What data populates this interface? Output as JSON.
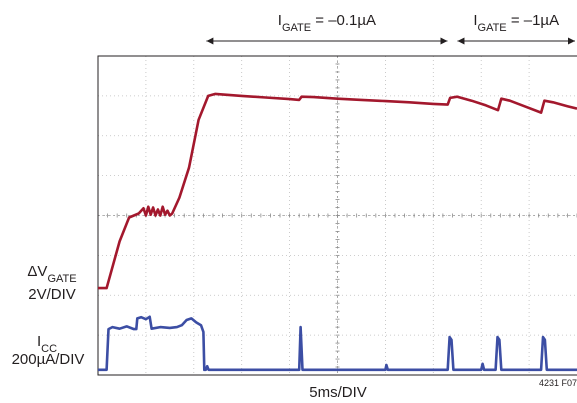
{
  "chart_data": {
    "type": "line",
    "title": "",
    "xlabel": "5ms/DIV",
    "figure_id": "4231 F07",
    "divisions": {
      "x": 10,
      "y": 8
    },
    "xlim": [
      0,
      10
    ],
    "ylim": [
      0,
      8
    ],
    "annotations": [
      {
        "sub_label": {
          "main": "I",
          "sub": "GATE",
          "rest": " = –0.1µA"
        },
        "x_span": [
          2.2,
          7.4
        ]
      },
      {
        "sub_label": {
          "main": "I",
          "sub": "GATE",
          "rest": " = –1µA"
        },
        "x_span": [
          7.4,
          10.0
        ]
      }
    ],
    "series": [
      {
        "channel": {
          "main": "ΔV",
          "sub": "GATE",
          "scale": "2V/DIV"
        },
        "color": "#a3182d",
        "points": [
          [
            0.0,
            2.18
          ],
          [
            0.18,
            2.18
          ],
          [
            0.22,
            2.35
          ],
          [
            0.45,
            3.35
          ],
          [
            0.65,
            3.95
          ],
          [
            0.85,
            4.05
          ],
          [
            0.95,
            4.18
          ],
          [
            1.0,
            4.0
          ],
          [
            1.05,
            4.22
          ],
          [
            1.1,
            4.02
          ],
          [
            1.15,
            4.2
          ],
          [
            1.2,
            4.0
          ],
          [
            1.25,
            4.15
          ],
          [
            1.3,
            4.0
          ],
          [
            1.35,
            4.22
          ],
          [
            1.4,
            4.02
          ],
          [
            1.45,
            4.12
          ],
          [
            1.5,
            4.0
          ],
          [
            1.55,
            4.05
          ],
          [
            1.7,
            4.45
          ],
          [
            1.9,
            5.2
          ],
          [
            2.1,
            6.4
          ],
          [
            2.3,
            7.0
          ],
          [
            2.45,
            7.05
          ],
          [
            3.0,
            7.0
          ],
          [
            3.5,
            6.96
          ],
          [
            4.0,
            6.92
          ],
          [
            4.2,
            6.9
          ],
          [
            4.25,
            6.98
          ],
          [
            4.5,
            6.97
          ],
          [
            5.0,
            6.93
          ],
          [
            5.5,
            6.9
          ],
          [
            6.0,
            6.87
          ],
          [
            6.5,
            6.84
          ],
          [
            7.0,
            6.8
          ],
          [
            7.3,
            6.78
          ],
          [
            7.35,
            6.95
          ],
          [
            7.5,
            6.98
          ],
          [
            7.8,
            6.88
          ],
          [
            8.1,
            6.76
          ],
          [
            8.35,
            6.64
          ],
          [
            8.42,
            6.93
          ],
          [
            8.6,
            6.88
          ],
          [
            8.9,
            6.74
          ],
          [
            9.25,
            6.58
          ],
          [
            9.32,
            6.88
          ],
          [
            9.5,
            6.84
          ],
          [
            9.8,
            6.74
          ],
          [
            10.0,
            6.68
          ]
        ]
      },
      {
        "channel": {
          "main": "I",
          "sub": "CC",
          "scale": "200µA/DIV"
        },
        "color": "#3c4ea4",
        "points": [
          [
            0.0,
            0.13
          ],
          [
            0.18,
            0.13
          ],
          [
            0.22,
            1.15
          ],
          [
            0.3,
            1.2
          ],
          [
            0.45,
            1.16
          ],
          [
            0.6,
            1.22
          ],
          [
            0.75,
            1.15
          ],
          [
            0.8,
            1.15
          ],
          [
            0.82,
            1.42
          ],
          [
            0.9,
            1.45
          ],
          [
            1.0,
            1.4
          ],
          [
            1.08,
            1.46
          ],
          [
            1.12,
            1.16
          ],
          [
            1.3,
            1.2
          ],
          [
            1.5,
            1.18
          ],
          [
            1.65,
            1.2
          ],
          [
            1.75,
            1.25
          ],
          [
            1.85,
            1.38
          ],
          [
            1.95,
            1.42
          ],
          [
            2.05,
            1.32
          ],
          [
            2.15,
            1.25
          ],
          [
            2.2,
            1.08
          ],
          [
            2.22,
            0.13
          ],
          [
            2.25,
            0.13
          ],
          [
            2.28,
            0.22
          ],
          [
            2.31,
            0.13
          ],
          [
            4.2,
            0.13
          ],
          [
            4.23,
            1.2
          ],
          [
            4.27,
            0.13
          ],
          [
            6.0,
            0.13
          ],
          [
            6.02,
            0.25
          ],
          [
            6.05,
            0.13
          ],
          [
            7.3,
            0.13
          ],
          [
            7.34,
            0.95
          ],
          [
            7.38,
            0.88
          ],
          [
            7.42,
            0.13
          ],
          [
            8.0,
            0.13
          ],
          [
            8.03,
            0.28
          ],
          [
            8.06,
            0.13
          ],
          [
            8.3,
            0.13
          ],
          [
            8.34,
            0.95
          ],
          [
            8.38,
            0.88
          ],
          [
            8.42,
            0.13
          ],
          [
            9.25,
            0.13
          ],
          [
            9.29,
            0.95
          ],
          [
            9.33,
            0.88
          ],
          [
            9.37,
            0.13
          ],
          [
            10.0,
            0.13
          ]
        ]
      }
    ]
  }
}
